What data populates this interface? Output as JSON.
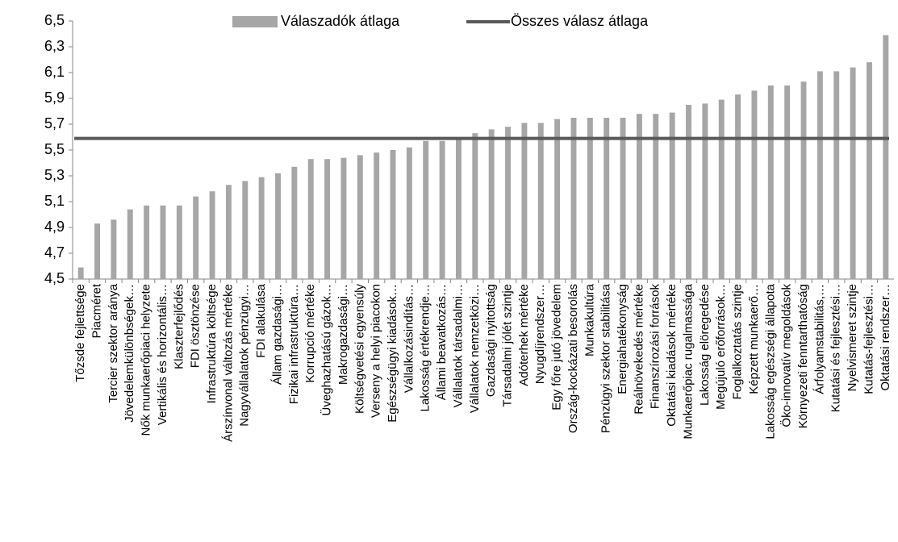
{
  "chart_data": {
    "type": "bar",
    "categories": [
      "Tőzsde fejlettsége",
      "Piacméret",
      "Tercier szektor aránya",
      "Jövedelemkülönbségek…",
      "Nők munkaerőpiaci helyzete",
      "Vertikális és horizontális…",
      "Klaszterfejlődés",
      "FDI ösztönzése",
      "Infrastruktúra költsége",
      "Árszínvonal változás mértéke",
      "Nagyvállalatok pénzügyi…",
      "FDI alakulása",
      "Állam gazdasági…",
      "Fizikai infrastruktúra…",
      "Korrupció mértéke",
      "Üveghazhatású gázok…",
      "Makrogazdasági…",
      "Költségvetési egyensúly",
      "Verseny a helyi piacokon",
      "Egészségügyi kiadások…",
      "Vállalkozásindítás…",
      "Lakosság értékrendje…",
      "Állami beavatkozás…",
      "Vállalatok társadalmi…",
      "Vállalatok nemzetközi…",
      "Gazdasági nyitottság",
      "Társadalmi jólét szintje",
      "Adóterhek mértéke",
      "Nyugdíjrendszer…",
      "Egy főre jutó jövedelem",
      "Ország-kockázati besorolás",
      "Munkakultúra",
      "Pénzügyi szektor stabilitása",
      "Energiahatékonyság",
      "Reálnövekedés mértéke",
      "Finanszírozási források",
      "Oktatási kiadások mértéke",
      "Munkaerőpiac rugalmassága",
      "Lakosság elöregedése",
      "Megújuló erőforrások…",
      "Foglalkoztatás szintje",
      "Képzett munkaerő…",
      "Lakosság egészségi állapota",
      "Öko-innovatív megoldások",
      "Környezeti fenntarthatóság",
      "Árfolyamstabilitás,…",
      "Kutatási és fejlesztési…",
      "Nyelvismeret szintje",
      "Kutatás-fejlesztési…",
      "Oktatási rendszer…"
    ],
    "series": [
      {
        "name": "Válaszadók átlaga",
        "color": "#a6a6a6",
        "values": [
          4.59,
          4.93,
          4.96,
          5.04,
          5.07,
          5.07,
          5.07,
          5.14,
          5.18,
          5.23,
          5.26,
          5.29,
          5.32,
          5.37,
          5.43,
          5.43,
          5.44,
          5.46,
          5.48,
          5.5,
          5.52,
          5.57,
          5.57,
          5.58,
          5.63,
          5.66,
          5.68,
          5.71,
          5.71,
          5.74,
          5.75,
          5.75,
          5.75,
          5.75,
          5.78,
          5.78,
          5.79,
          5.85,
          5.86,
          5.89,
          5.93,
          5.96,
          6.0,
          6.0,
          6.03,
          6.11,
          6.11,
          6.14,
          6.18,
          6.39
        ]
      },
      {
        "name": "Összes válasz átlaga",
        "color": "#595959",
        "type": "line",
        "value": 5.59
      }
    ],
    "ylim": [
      4.5,
      6.5
    ],
    "yticks": [
      {
        "value": 4.5,
        "label": "4,5"
      },
      {
        "value": 4.7,
        "label": "4,7"
      },
      {
        "value": 4.9,
        "label": "4,9"
      },
      {
        "value": 5.1,
        "label": "5,1"
      },
      {
        "value": 5.3,
        "label": "5,3"
      },
      {
        "value": 5.5,
        "label": "5,5"
      },
      {
        "value": 5.7,
        "label": "5,7"
      },
      {
        "value": 5.9,
        "label": "5,9"
      },
      {
        "value": 6.1,
        "label": "6,1"
      },
      {
        "value": 6.3,
        "label": "6,3"
      },
      {
        "value": 6.5,
        "label": "6,5"
      }
    ],
    "grid": false,
    "legend": "top"
  }
}
